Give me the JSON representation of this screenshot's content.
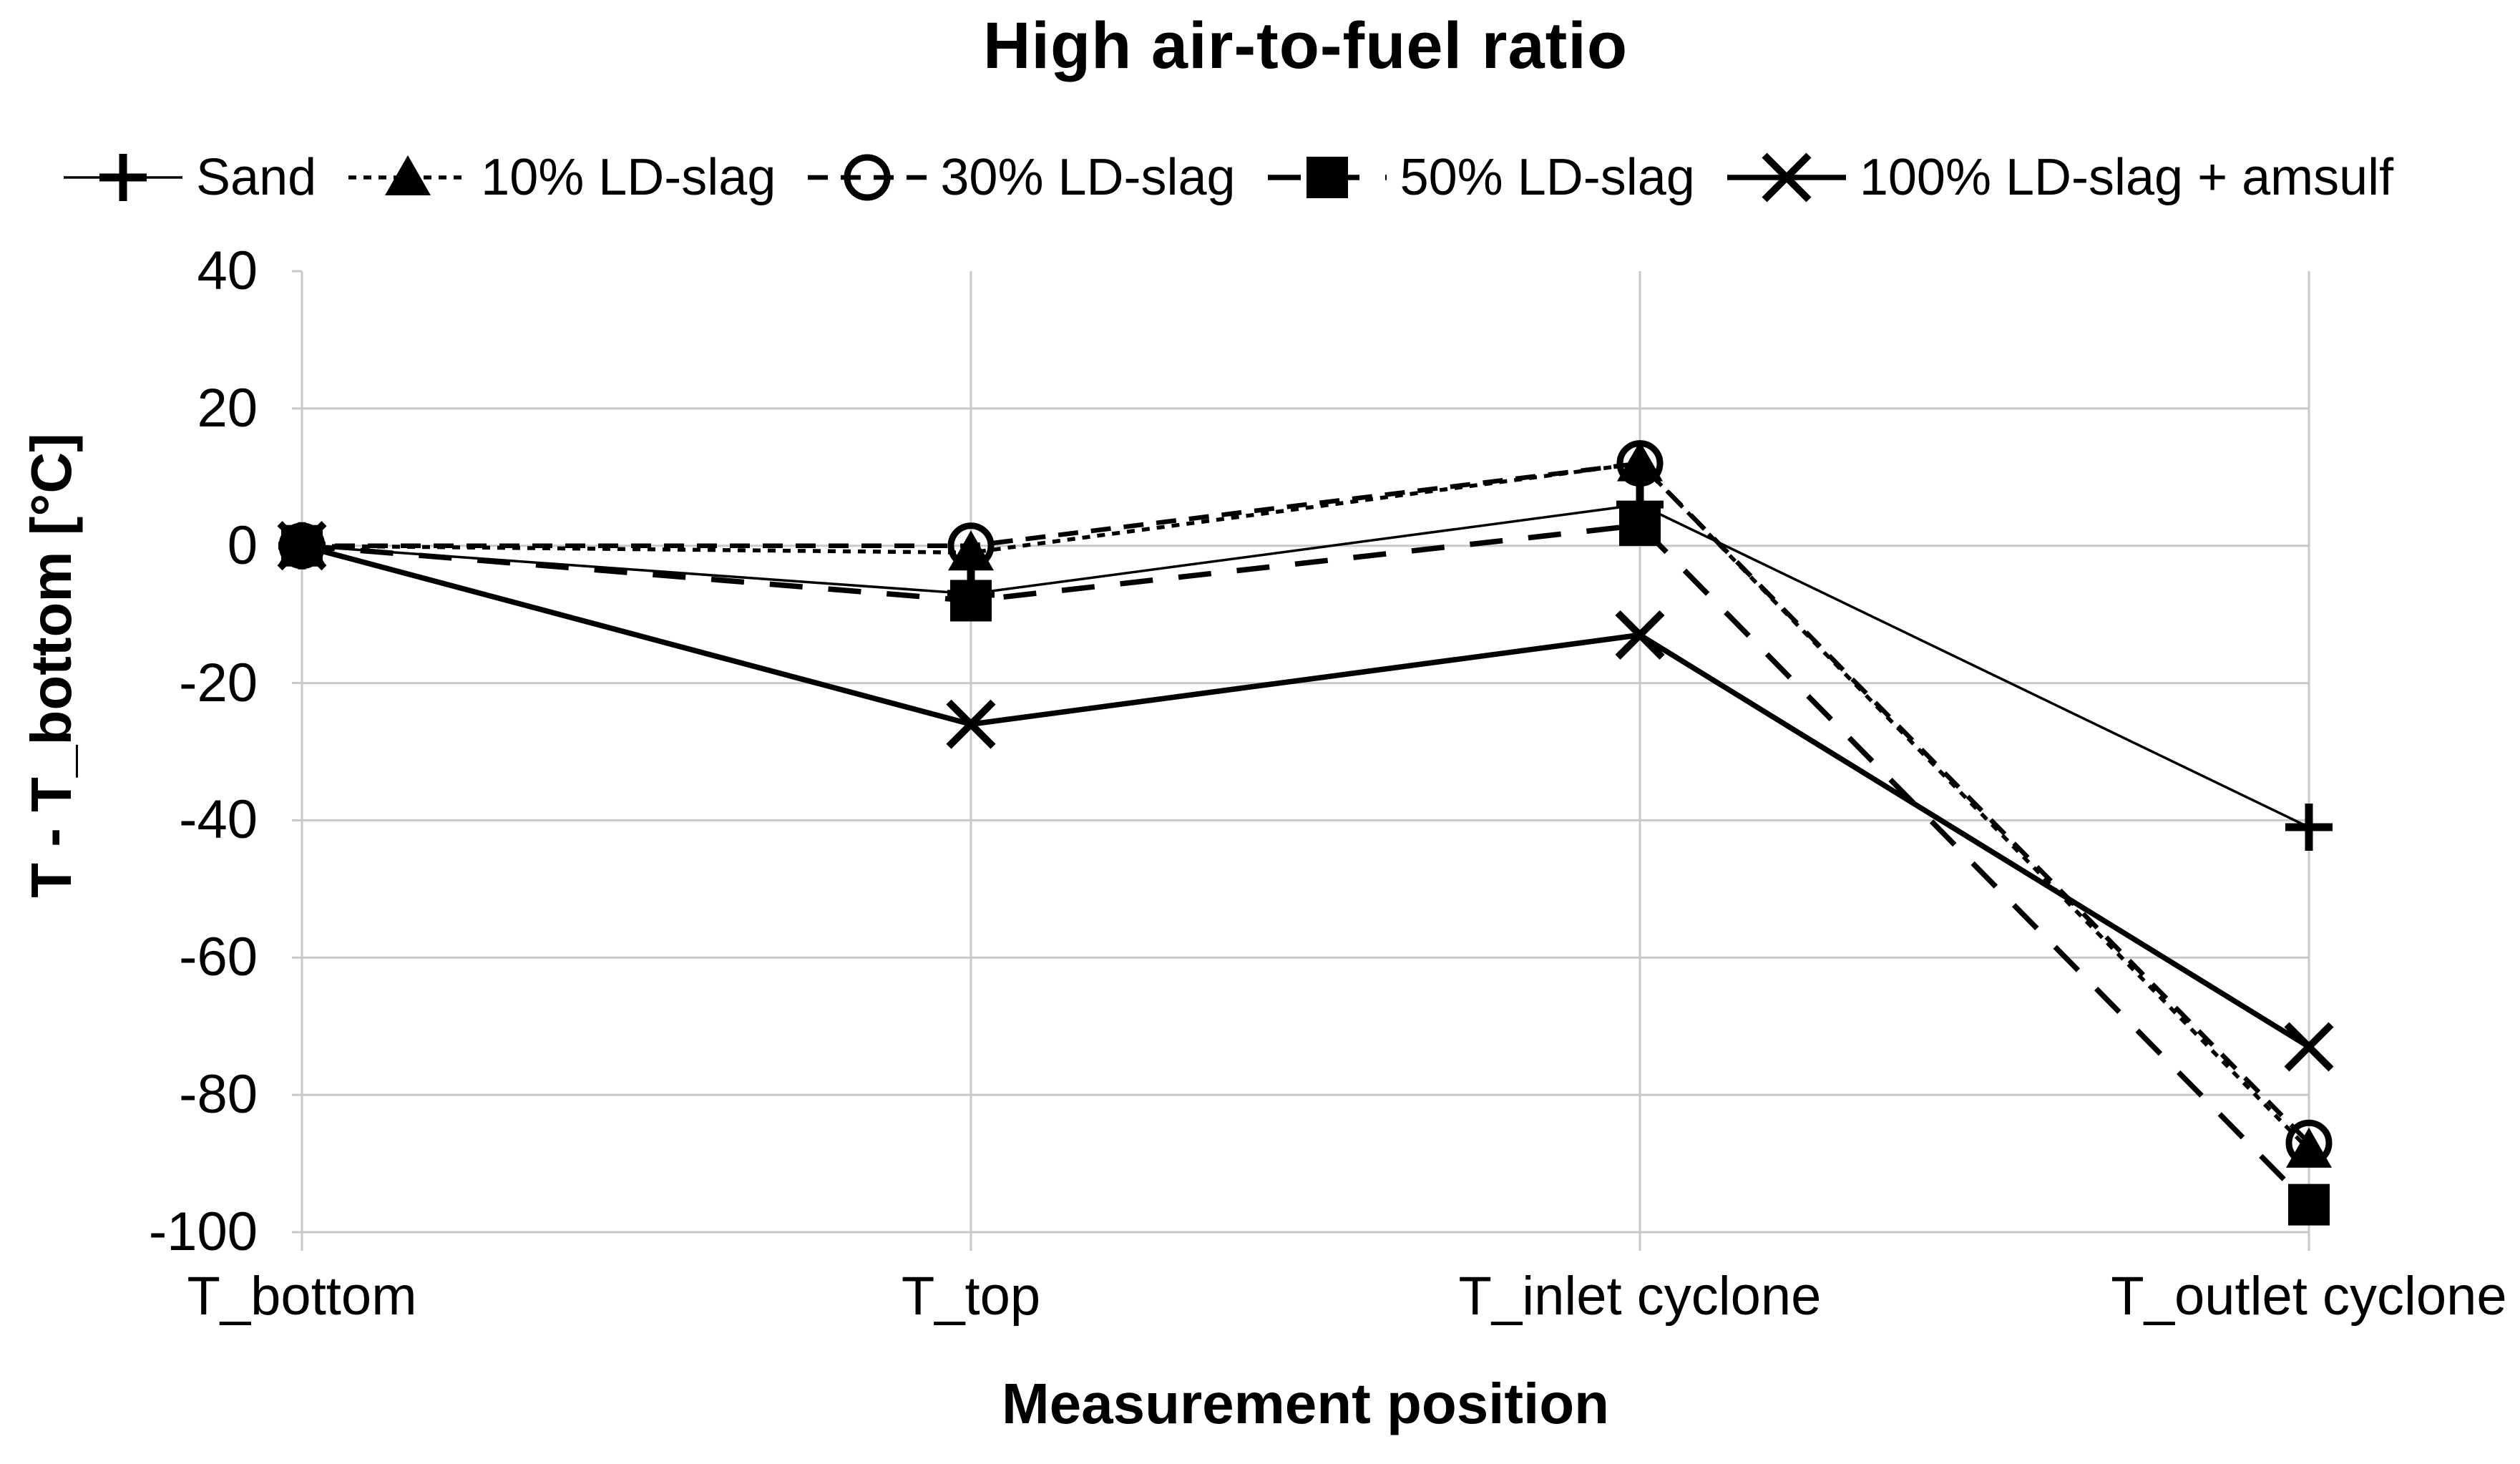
{
  "chart_data": {
    "type": "line",
    "title": "High air-to-fuel ratio",
    "xlabel": "Measurement position",
    "ylabel": "T - T_bottom [°C]",
    "categories": [
      "T_bottom",
      "T_top",
      "T_inlet cyclone",
      "T_outlet cyclone"
    ],
    "ylim": [
      -100,
      40
    ],
    "yticks": [
      40,
      20,
      0,
      -20,
      -40,
      -60,
      -80,
      -100
    ],
    "grid": true,
    "legend_position": "top",
    "color": "#000000",
    "gridline_color": "#c9c9c9",
    "background": "#ffffff",
    "series": [
      {
        "name": "Sand",
        "values": [
          0,
          -7,
          6,
          -41
        ],
        "marker": "plus",
        "line": "solid",
        "weight": "thin"
      },
      {
        "name": "10% LD-slag",
        "values": [
          0,
          -1,
          12,
          -88
        ],
        "marker": "triangle-filled",
        "line": "dotted",
        "weight": "medium"
      },
      {
        "name": "30% LD-slag",
        "values": [
          0,
          0,
          12,
          -87
        ],
        "marker": "circle-open",
        "line": "dashed",
        "weight": "medium"
      },
      {
        "name": "50% LD-slag",
        "values": [
          0,
          -8,
          3,
          -96
        ],
        "marker": "square-filled",
        "line": "long-dash",
        "weight": "thick"
      },
      {
        "name": "100% LD-slag + amsulf",
        "values": [
          0,
          -26,
          -13,
          -73
        ],
        "marker": "x",
        "line": "solid",
        "weight": "thick"
      }
    ]
  }
}
